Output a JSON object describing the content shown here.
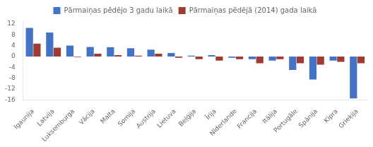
{
  "chart_data": {
    "type": "bar",
    "categories": [
      "Igaunija",
      "Latvija",
      "Luksemburga",
      "Vācija",
      "Malta",
      "Somija",
      "Austrija",
      "Lietuva",
      "Beļģija",
      "Īrija",
      "Nīderlande",
      "Francija",
      "Itālija",
      "Portugāle",
      "Spānija",
      "Kipra",
      "Grieķija"
    ],
    "series": [
      {
        "name": "Pārmaiņas pēdējo 3 gadu laikā",
        "color": "#4472C4",
        "values": [
          10.5,
          8.8,
          4.0,
          3.5,
          3.4,
          3.0,
          2.5,
          1.3,
          0.3,
          0.5,
          -0.5,
          -1.0,
          -1.5,
          -5.0,
          -8.5,
          -1.5,
          -15.5
        ]
      },
      {
        "name": "Pārmaiņas pēdējā (2014) gada laikā",
        "color": "#9E3B33",
        "values": [
          4.7,
          3.2,
          -0.2,
          1.0,
          0.5,
          0.3,
          1.0,
          -0.5,
          -1.0,
          -1.5,
          -1.0,
          -2.5,
          -1.0,
          -2.5,
          -3.0,
          -2.0,
          -2.5
        ]
      }
    ],
    "ylim": [
      -16,
      13
    ],
    "yticks": [
      -16,
      -12,
      -8,
      -4,
      0,
      4,
      8,
      12
    ],
    "grid": false,
    "legend": "top"
  }
}
